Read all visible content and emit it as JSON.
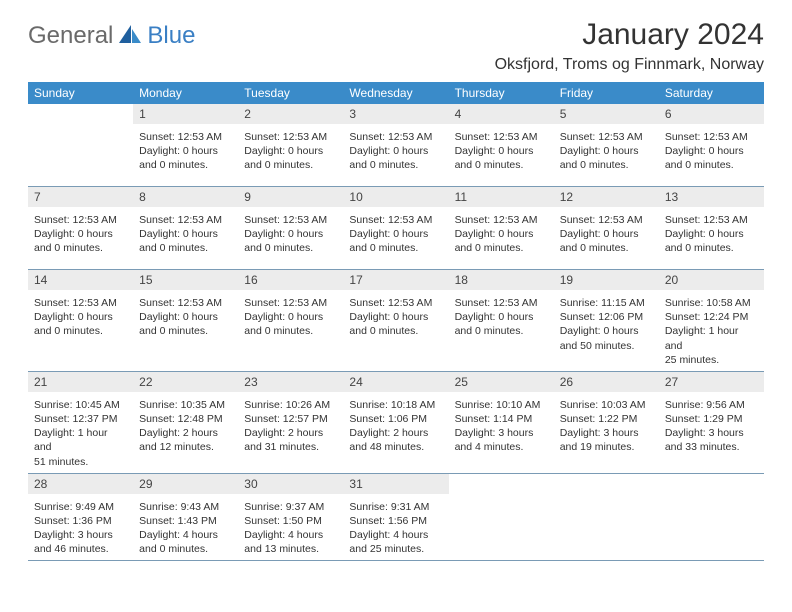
{
  "logo": {
    "part1": "General",
    "part2": "Blue"
  },
  "title": "January 2024",
  "location": "Oksfjord, Troms og Finnmark, Norway",
  "day_names": [
    "Sunday",
    "Monday",
    "Tuesday",
    "Wednesday",
    "Thursday",
    "Friday",
    "Saturday"
  ],
  "colors": {
    "header_bg": "#3a8bc9",
    "header_text": "#ffffff",
    "daynum_bg": "#ececec",
    "week_border": "#7a9bb5",
    "logo_gray": "#6a6a6a",
    "logo_blue": "#3a7fc4"
  },
  "weeks": [
    [
      {
        "n": "",
        "lines": []
      },
      {
        "n": "1",
        "lines": [
          "Sunset: 12:53 AM",
          "Daylight: 0 hours",
          "and 0 minutes."
        ]
      },
      {
        "n": "2",
        "lines": [
          "Sunset: 12:53 AM",
          "Daylight: 0 hours",
          "and 0 minutes."
        ]
      },
      {
        "n": "3",
        "lines": [
          "Sunset: 12:53 AM",
          "Daylight: 0 hours",
          "and 0 minutes."
        ]
      },
      {
        "n": "4",
        "lines": [
          "Sunset: 12:53 AM",
          "Daylight: 0 hours",
          "and 0 minutes."
        ]
      },
      {
        "n": "5",
        "lines": [
          "Sunset: 12:53 AM",
          "Daylight: 0 hours",
          "and 0 minutes."
        ]
      },
      {
        "n": "6",
        "lines": [
          "Sunset: 12:53 AM",
          "Daylight: 0 hours",
          "and 0 minutes."
        ]
      }
    ],
    [
      {
        "n": "7",
        "lines": [
          "Sunset: 12:53 AM",
          "Daylight: 0 hours",
          "and 0 minutes."
        ]
      },
      {
        "n": "8",
        "lines": [
          "Sunset: 12:53 AM",
          "Daylight: 0 hours",
          "and 0 minutes."
        ]
      },
      {
        "n": "9",
        "lines": [
          "Sunset: 12:53 AM",
          "Daylight: 0 hours",
          "and 0 minutes."
        ]
      },
      {
        "n": "10",
        "lines": [
          "Sunset: 12:53 AM",
          "Daylight: 0 hours",
          "and 0 minutes."
        ]
      },
      {
        "n": "11",
        "lines": [
          "Sunset: 12:53 AM",
          "Daylight: 0 hours",
          "and 0 minutes."
        ]
      },
      {
        "n": "12",
        "lines": [
          "Sunset: 12:53 AM",
          "Daylight: 0 hours",
          "and 0 minutes."
        ]
      },
      {
        "n": "13",
        "lines": [
          "Sunset: 12:53 AM",
          "Daylight: 0 hours",
          "and 0 minutes."
        ]
      }
    ],
    [
      {
        "n": "14",
        "lines": [
          "Sunset: 12:53 AM",
          "Daylight: 0 hours",
          "and 0 minutes."
        ]
      },
      {
        "n": "15",
        "lines": [
          "Sunset: 12:53 AM",
          "Daylight: 0 hours",
          "and 0 minutes."
        ]
      },
      {
        "n": "16",
        "lines": [
          "Sunset: 12:53 AM",
          "Daylight: 0 hours",
          "and 0 minutes."
        ]
      },
      {
        "n": "17",
        "lines": [
          "Sunset: 12:53 AM",
          "Daylight: 0 hours",
          "and 0 minutes."
        ]
      },
      {
        "n": "18",
        "lines": [
          "Sunset: 12:53 AM",
          "Daylight: 0 hours",
          "and 0 minutes."
        ]
      },
      {
        "n": "19",
        "lines": [
          "Sunrise: 11:15 AM",
          "Sunset: 12:06 PM",
          "Daylight: 0 hours",
          "and 50 minutes."
        ]
      },
      {
        "n": "20",
        "lines": [
          "Sunrise: 10:58 AM",
          "Sunset: 12:24 PM",
          "Daylight: 1 hour and",
          "25 minutes."
        ]
      }
    ],
    [
      {
        "n": "21",
        "lines": [
          "Sunrise: 10:45 AM",
          "Sunset: 12:37 PM",
          "Daylight: 1 hour and",
          "51 minutes."
        ]
      },
      {
        "n": "22",
        "lines": [
          "Sunrise: 10:35 AM",
          "Sunset: 12:48 PM",
          "Daylight: 2 hours",
          "and 12 minutes."
        ]
      },
      {
        "n": "23",
        "lines": [
          "Sunrise: 10:26 AM",
          "Sunset: 12:57 PM",
          "Daylight: 2 hours",
          "and 31 minutes."
        ]
      },
      {
        "n": "24",
        "lines": [
          "Sunrise: 10:18 AM",
          "Sunset: 1:06 PM",
          "Daylight: 2 hours",
          "and 48 minutes."
        ]
      },
      {
        "n": "25",
        "lines": [
          "Sunrise: 10:10 AM",
          "Sunset: 1:14 PM",
          "Daylight: 3 hours",
          "and 4 minutes."
        ]
      },
      {
        "n": "26",
        "lines": [
          "Sunrise: 10:03 AM",
          "Sunset: 1:22 PM",
          "Daylight: 3 hours",
          "and 19 minutes."
        ]
      },
      {
        "n": "27",
        "lines": [
          "Sunrise: 9:56 AM",
          "Sunset: 1:29 PM",
          "Daylight: 3 hours",
          "and 33 minutes."
        ]
      }
    ],
    [
      {
        "n": "28",
        "lines": [
          "Sunrise: 9:49 AM",
          "Sunset: 1:36 PM",
          "Daylight: 3 hours",
          "and 46 minutes."
        ]
      },
      {
        "n": "29",
        "lines": [
          "Sunrise: 9:43 AM",
          "Sunset: 1:43 PM",
          "Daylight: 4 hours",
          "and 0 minutes."
        ]
      },
      {
        "n": "30",
        "lines": [
          "Sunrise: 9:37 AM",
          "Sunset: 1:50 PM",
          "Daylight: 4 hours",
          "and 13 minutes."
        ]
      },
      {
        "n": "31",
        "lines": [
          "Sunrise: 9:31 AM",
          "Sunset: 1:56 PM",
          "Daylight: 4 hours",
          "and 25 minutes."
        ]
      },
      {
        "n": "",
        "lines": []
      },
      {
        "n": "",
        "lines": []
      },
      {
        "n": "",
        "lines": []
      }
    ]
  ]
}
